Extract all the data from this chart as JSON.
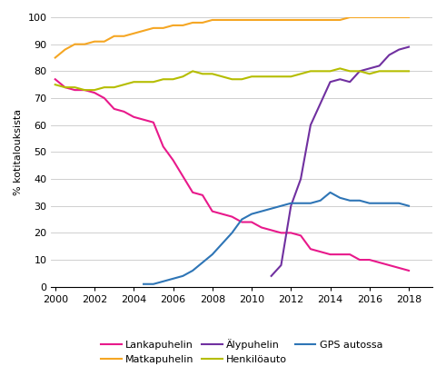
{
  "title": "",
  "ylabel": "% kotitalouksista",
  "ylim": [
    0,
    100
  ],
  "xlim": [
    1999.8,
    2019.2
  ],
  "yticks": [
    0,
    10,
    20,
    30,
    40,
    50,
    60,
    70,
    80,
    90,
    100
  ],
  "xticks": [
    2000,
    2002,
    2004,
    2006,
    2008,
    2010,
    2012,
    2014,
    2016,
    2018
  ],
  "grid_color": "#c8c8c8",
  "series": {
    "Lankapuhelin": {
      "color": "#e8198b",
      "x": [
        2000.0,
        2000.5,
        2001.0,
        2001.5,
        2002.0,
        2002.5,
        2003.0,
        2003.5,
        2004.0,
        2004.5,
        2005.0,
        2005.5,
        2006.0,
        2006.5,
        2007.0,
        2007.5,
        2008.0,
        2008.5,
        2009.0,
        2009.5,
        2010.0,
        2010.5,
        2011.0,
        2011.5,
        2012.0,
        2012.5,
        2013.0,
        2013.5,
        2014.0,
        2014.5,
        2015.0,
        2015.5,
        2016.0,
        2016.5,
        2017.0,
        2017.5,
        2018.0
      ],
      "y": [
        77,
        74,
        73,
        73,
        72,
        70,
        66,
        65,
        63,
        62,
        61,
        52,
        47,
        41,
        35,
        34,
        28,
        27,
        26,
        24,
        24,
        22,
        21,
        20,
        20,
        19,
        14,
        13,
        12,
        12,
        12,
        10,
        10,
        9,
        8,
        7,
        6
      ]
    },
    "Matkapuhelin": {
      "color": "#f5a623",
      "x": [
        2000.0,
        2000.5,
        2001.0,
        2001.5,
        2002.0,
        2002.5,
        2003.0,
        2003.5,
        2004.0,
        2004.5,
        2005.0,
        2005.5,
        2006.0,
        2006.5,
        2007.0,
        2007.5,
        2008.0,
        2008.5,
        2009.0,
        2009.5,
        2010.0,
        2010.5,
        2011.0,
        2011.5,
        2012.0,
        2012.5,
        2013.0,
        2013.5,
        2014.0,
        2014.5,
        2015.0,
        2015.5,
        2016.0,
        2016.5,
        2017.0,
        2017.5,
        2018.0
      ],
      "y": [
        85,
        88,
        90,
        90,
        91,
        91,
        93,
        93,
        94,
        95,
        96,
        96,
        97,
        97,
        98,
        98,
        99,
        99,
        99,
        99,
        99,
        99,
        99,
        99,
        99,
        99,
        99,
        99,
        99,
        99,
        100,
        100,
        100,
        100,
        100,
        100,
        100
      ]
    },
    "Alypuhelin": {
      "color": "#7030a0",
      "x": [
        2011.0,
        2011.5,
        2012.0,
        2012.5,
        2013.0,
        2013.5,
        2014.0,
        2014.5,
        2015.0,
        2015.5,
        2016.0,
        2016.5,
        2017.0,
        2017.5,
        2018.0
      ],
      "y": [
        4,
        8,
        30,
        40,
        60,
        68,
        76,
        77,
        76,
        80,
        81,
        82,
        86,
        88,
        89
      ]
    },
    "Henkiloauto": {
      "color": "#b5bd00",
      "x": [
        2000.0,
        2000.5,
        2001.0,
        2001.5,
        2002.0,
        2002.5,
        2003.0,
        2003.5,
        2004.0,
        2004.5,
        2005.0,
        2005.5,
        2006.0,
        2006.5,
        2007.0,
        2007.5,
        2008.0,
        2008.5,
        2009.0,
        2009.5,
        2010.0,
        2010.5,
        2011.0,
        2011.5,
        2012.0,
        2012.5,
        2013.0,
        2013.5,
        2014.0,
        2014.5,
        2015.0,
        2015.5,
        2016.0,
        2016.5,
        2017.0,
        2017.5,
        2018.0
      ],
      "y": [
        75,
        74,
        74,
        73,
        73,
        74,
        74,
        75,
        76,
        76,
        76,
        77,
        77,
        78,
        80,
        79,
        79,
        78,
        77,
        77,
        78,
        78,
        78,
        78,
        78,
        79,
        80,
        80,
        80,
        81,
        80,
        80,
        79,
        80,
        80,
        80,
        80
      ]
    },
    "GPS_autossa": {
      "color": "#2e75b6",
      "x": [
        2004.5,
        2005.0,
        2005.5,
        2006.0,
        2006.5,
        2007.0,
        2007.5,
        2008.0,
        2008.5,
        2009.0,
        2009.5,
        2010.0,
        2010.5,
        2011.0,
        2011.5,
        2012.0,
        2012.5,
        2013.0,
        2013.5,
        2014.0,
        2014.5,
        2015.0,
        2015.5,
        2016.0,
        2016.5,
        2017.0,
        2017.5,
        2018.0
      ],
      "y": [
        1,
        1,
        2,
        3,
        4,
        6,
        9,
        12,
        16,
        20,
        25,
        27,
        28,
        29,
        30,
        31,
        31,
        31,
        32,
        35,
        33,
        32,
        32,
        31,
        31,
        31,
        31,
        30
      ]
    }
  },
  "legend": [
    {
      "label": "Lankapuhelin",
      "color": "#e8198b"
    },
    {
      "label": "Matkapuhelin",
      "color": "#f5a623"
    },
    {
      "label": "Älypuhelin",
      "color": "#7030a0"
    },
    {
      "label": "Henkilöauto",
      "color": "#b5bd00"
    },
    {
      "label": "GPS autossa",
      "color": "#2e75b6"
    }
  ],
  "background_color": "#ffffff"
}
